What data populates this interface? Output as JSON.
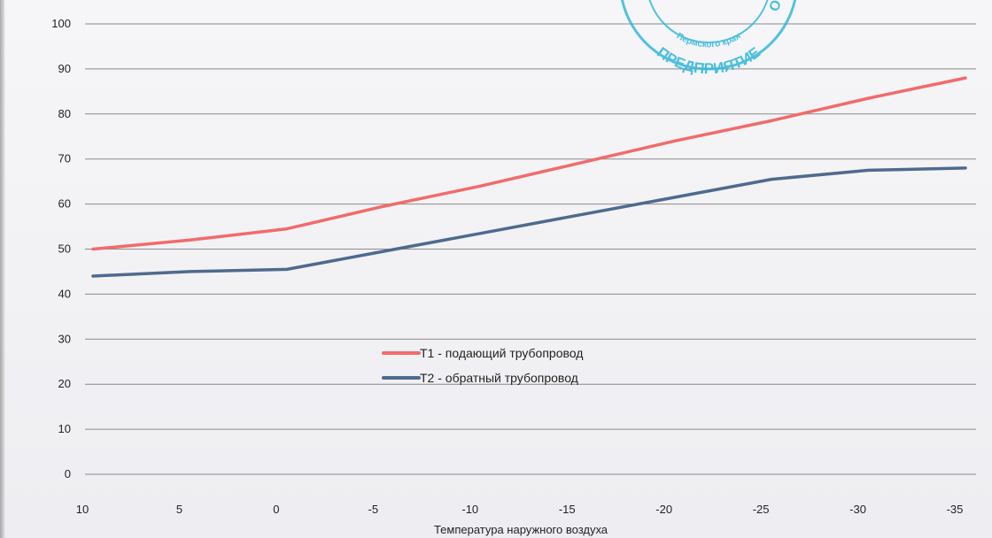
{
  "chart_data": {
    "type": "line",
    "title": "",
    "xlabel": "Температура наружного воздуха",
    "ylabel": "",
    "x": [
      10,
      5,
      0,
      -5,
      -10,
      -15,
      -20,
      -25,
      -30,
      -35
    ],
    "x_tick_labels": [
      "10",
      "5",
      "0",
      "-5",
      "-10",
      "-15",
      "-20",
      "-25",
      "-30",
      "-35"
    ],
    "y_tick_labels": [
      "0",
      "10",
      "20",
      "30",
      "40",
      "50",
      "60",
      "70",
      "80",
      "90",
      "100"
    ],
    "xlim": [
      10,
      -35
    ],
    "ylim": [
      0,
      100
    ],
    "x_reversed": true,
    "grid": "horizontal",
    "legend_placement": "center",
    "series": [
      {
        "name": "Т1 - подающий трубопровод",
        "color": "#f26b6b",
        "values": [
          50,
          52,
          54.5,
          59.5,
          64,
          69,
          74,
          78.5,
          83.5,
          88
        ]
      },
      {
        "name": "Т2 - обратный трубопровод",
        "color": "#4e6a8e",
        "values": [
          44,
          45,
          45.5,
          49.5,
          53.5,
          57.5,
          61.5,
          65.5,
          67.5,
          68
        ]
      }
    ]
  },
  "stamp": {
    "text_outer": "ПРЕДПРИЯТИЕ",
    "text_inner": "Пермского края",
    "letters_right": "О Е"
  }
}
